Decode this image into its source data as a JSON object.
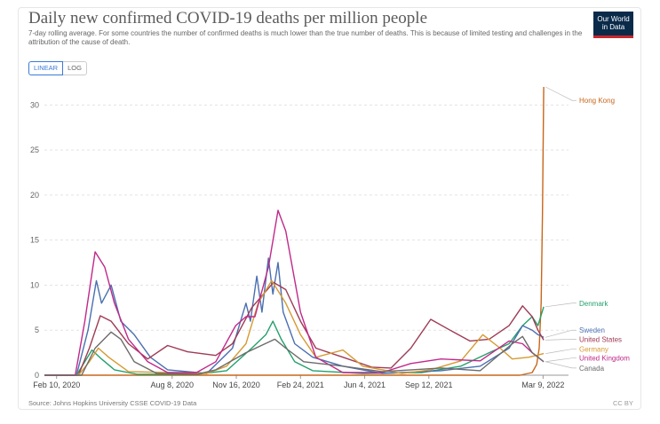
{
  "header": {
    "title": "Daily new confirmed COVID-19 deaths per million people",
    "subtitle": "7-day rolling average. For some countries the number of confirmed deaths is much lower than the true number of deaths. This is because of limited testing and challenges in the attribution of the cause of death."
  },
  "logo": {
    "line1": "Our World",
    "line2": "in Data"
  },
  "toggle": {
    "linear": "LINEAR",
    "log": "LOG"
  },
  "footer": {
    "source": "Source: Johns Hopkins University CSSE COVID-19 Data",
    "license": "CC BY"
  },
  "colors": {
    "Hong Kong": "#c8661a",
    "Denmark": "#23a06b",
    "Sweden": "#4a6fb0",
    "United States": "#9e3b54",
    "Germany": "#d69a33",
    "United Kingdom": "#c0298a",
    "Canada": "#6b6b6b"
  },
  "chart_data": {
    "type": "line",
    "title": "Daily new confirmed COVID-19 deaths per million people",
    "ylim": [
      0,
      32
    ],
    "yticks": [
      0,
      5,
      10,
      15,
      20,
      25,
      30
    ],
    "xlim": [
      "2020-01-22",
      "2022-04-01"
    ],
    "xticks": [
      {
        "label": "Feb 10, 2020",
        "date": "2020-02-10"
      },
      {
        "label": "Aug 8, 2020",
        "date": "2020-08-08"
      },
      {
        "label": "Nov 16, 2020",
        "date": "2020-11-16"
      },
      {
        "label": "Feb 24, 2021",
        "date": "2021-02-24"
      },
      {
        "label": "Jun 4, 2021",
        "date": "2021-06-04"
      },
      {
        "label": "Sep 12, 2021",
        "date": "2021-09-12"
      },
      {
        "label": "Mar 9, 2022",
        "date": "2022-03-09"
      }
    ],
    "grid": true,
    "legend": "right",
    "series": [
      {
        "name": "Hong Kong",
        "points": [
          [
            "2020-01-22",
            0
          ],
          [
            "2022-02-01",
            0
          ],
          [
            "2022-02-20",
            0.3
          ],
          [
            "2022-02-27",
            1.2
          ],
          [
            "2022-03-03",
            3
          ],
          [
            "2022-03-06",
            8
          ],
          [
            "2022-03-08",
            18
          ],
          [
            "2022-03-10",
            32
          ]
        ]
      },
      {
        "name": "Denmark",
        "points": [
          [
            "2020-01-22",
            0
          ],
          [
            "2020-03-12",
            0
          ],
          [
            "2020-03-25",
            1.5
          ],
          [
            "2020-04-05",
            2.8
          ],
          [
            "2020-04-20",
            1.8
          ],
          [
            "2020-05-10",
            0.6
          ],
          [
            "2020-06-15",
            0.1
          ],
          [
            "2020-09-15",
            0.1
          ],
          [
            "2020-11-01",
            0.5
          ],
          [
            "2020-12-10",
            3
          ],
          [
            "2021-01-01",
            4.5
          ],
          [
            "2021-01-12",
            6
          ],
          [
            "2021-01-25",
            4
          ],
          [
            "2021-02-15",
            1.5
          ],
          [
            "2021-03-15",
            0.5
          ],
          [
            "2021-06-01",
            0.2
          ],
          [
            "2021-09-01",
            0.3
          ],
          [
            "2021-11-01",
            1
          ],
          [
            "2021-12-15",
            2.5
          ],
          [
            "2022-01-15",
            3.5
          ],
          [
            "2022-02-05",
            5.5
          ],
          [
            "2022-02-20",
            6.5
          ],
          [
            "2022-03-01",
            5.5
          ],
          [
            "2022-03-10",
            7.6
          ]
        ]
      },
      {
        "name": "Sweden",
        "points": [
          [
            "2020-01-22",
            0
          ],
          [
            "2020-03-12",
            0
          ],
          [
            "2020-03-30",
            5
          ],
          [
            "2020-04-12",
            10.5
          ],
          [
            "2020-04-20",
            8
          ],
          [
            "2020-05-05",
            10
          ],
          [
            "2020-05-20",
            6
          ],
          [
            "2020-06-10",
            4.5
          ],
          [
            "2020-07-05",
            2
          ],
          [
            "2020-08-01",
            0.6
          ],
          [
            "2020-10-01",
            0.2
          ],
          [
            "2020-11-10",
            3
          ],
          [
            "2020-12-01",
            8
          ],
          [
            "2020-12-08",
            6
          ],
          [
            "2020-12-18",
            11
          ],
          [
            "2020-12-26",
            7
          ],
          [
            "2021-01-05",
            13
          ],
          [
            "2021-01-12",
            9
          ],
          [
            "2021-01-20",
            12.5
          ],
          [
            "2021-01-28",
            7
          ],
          [
            "2021-02-15",
            3.5
          ],
          [
            "2021-03-15",
            2
          ],
          [
            "2021-05-01",
            1
          ],
          [
            "2021-07-01",
            0.2
          ],
          [
            "2021-10-01",
            0.5
          ],
          [
            "2021-12-01",
            1
          ],
          [
            "2022-01-15",
            3
          ],
          [
            "2022-02-05",
            5.5
          ],
          [
            "2022-02-20",
            5
          ],
          [
            "2022-03-01",
            4.5
          ],
          [
            "2022-03-10",
            4.2
          ]
        ]
      },
      {
        "name": "United States",
        "points": [
          [
            "2020-01-22",
            0
          ],
          [
            "2020-03-15",
            0
          ],
          [
            "2020-04-01",
            3
          ],
          [
            "2020-04-18",
            6.6
          ],
          [
            "2020-05-05",
            6
          ],
          [
            "2020-06-01",
            3.5
          ],
          [
            "2020-07-01",
            1.8
          ],
          [
            "2020-08-01",
            3.3
          ],
          [
            "2020-09-01",
            2.6
          ],
          [
            "2020-10-15",
            2.2
          ],
          [
            "2020-11-10",
            3.5
          ],
          [
            "2020-12-10",
            7.5
          ],
          [
            "2021-01-13",
            10.3
          ],
          [
            "2021-02-01",
            9.5
          ],
          [
            "2021-02-24",
            6
          ],
          [
            "2021-03-20",
            3
          ],
          [
            "2021-05-01",
            2
          ],
          [
            "2021-06-15",
            0.9
          ],
          [
            "2021-07-15",
            0.8
          ],
          [
            "2021-08-15",
            3
          ],
          [
            "2021-09-15",
            6.2
          ],
          [
            "2021-10-15",
            5
          ],
          [
            "2021-11-15",
            3.8
          ],
          [
            "2021-12-15",
            4
          ],
          [
            "2022-01-15",
            5.5
          ],
          [
            "2022-02-05",
            7.7
          ],
          [
            "2022-02-20",
            6.5
          ],
          [
            "2022-03-01",
            5
          ],
          [
            "2022-03-10",
            3.9
          ]
        ]
      },
      {
        "name": "Germany",
        "points": [
          [
            "2020-01-22",
            0
          ],
          [
            "2020-03-15",
            0
          ],
          [
            "2020-04-01",
            1.5
          ],
          [
            "2020-04-15",
            3
          ],
          [
            "2020-05-01",
            2
          ],
          [
            "2020-06-01",
            0.4
          ],
          [
            "2020-10-01",
            0.2
          ],
          [
            "2020-11-01",
            1
          ],
          [
            "2020-12-01",
            3.5
          ],
          [
            "2020-12-20",
            8
          ],
          [
            "2021-01-10",
            10.5
          ],
          [
            "2021-02-01",
            8
          ],
          [
            "2021-02-24",
            4.5
          ],
          [
            "2021-03-20",
            2
          ],
          [
            "2021-05-01",
            2.8
          ],
          [
            "2021-06-01",
            1
          ],
          [
            "2021-08-01",
            0.2
          ],
          [
            "2021-09-15",
            0.6
          ],
          [
            "2021-11-01",
            1.6
          ],
          [
            "2021-12-05",
            4.5
          ],
          [
            "2022-01-01",
            3
          ],
          [
            "2022-01-20",
            1.8
          ],
          [
            "2022-02-15",
            2
          ],
          [
            "2022-03-10",
            2.4
          ]
        ]
      },
      {
        "name": "United Kingdom",
        "points": [
          [
            "2020-01-22",
            0
          ],
          [
            "2020-03-10",
            0
          ],
          [
            "2020-03-25",
            6
          ],
          [
            "2020-04-10",
            13.7
          ],
          [
            "2020-04-25",
            12
          ],
          [
            "2020-05-10",
            8
          ],
          [
            "2020-06-01",
            4
          ],
          [
            "2020-07-01",
            1.5
          ],
          [
            "2020-08-01",
            0.3
          ],
          [
            "2020-09-15",
            0.3
          ],
          [
            "2020-10-15",
            1.5
          ],
          [
            "2020-11-15",
            5.5
          ],
          [
            "2020-12-01",
            6.5
          ],
          [
            "2020-12-15",
            6.5
          ],
          [
            "2021-01-05",
            12
          ],
          [
            "2021-01-20",
            18.3
          ],
          [
            "2021-02-01",
            16
          ],
          [
            "2021-02-24",
            7
          ],
          [
            "2021-03-20",
            2
          ],
          [
            "2021-05-01",
            0.3
          ],
          [
            "2021-07-01",
            0.3
          ],
          [
            "2021-08-15",
            1.3
          ],
          [
            "2021-10-01",
            1.8
          ],
          [
            "2021-12-01",
            1.6
          ],
          [
            "2022-01-15",
            3.8
          ],
          [
            "2022-02-05",
            3.5
          ],
          [
            "2022-02-20",
            2.5
          ],
          [
            "2022-03-10",
            1.5
          ]
        ]
      },
      {
        "name": "Canada",
        "points": [
          [
            "2020-01-22",
            0
          ],
          [
            "2020-03-20",
            0
          ],
          [
            "2020-04-10",
            3
          ],
          [
            "2020-05-05",
            4.8
          ],
          [
            "2020-05-20",
            4
          ],
          [
            "2020-06-10",
            1.5
          ],
          [
            "2020-07-15",
            0.2
          ],
          [
            "2020-09-15",
            0.1
          ],
          [
            "2020-10-15",
            0.6
          ],
          [
            "2020-12-01",
            2.5
          ],
          [
            "2021-01-15",
            4
          ],
          [
            "2021-02-01",
            3
          ],
          [
            "2021-03-01",
            1.5
          ],
          [
            "2021-05-01",
            1
          ],
          [
            "2021-07-01",
            0.4
          ],
          [
            "2021-10-01",
            0.8
          ],
          [
            "2021-12-01",
            0.5
          ],
          [
            "2022-01-20",
            3.5
          ],
          [
            "2022-02-05",
            4.3
          ],
          [
            "2022-02-20",
            2.5
          ],
          [
            "2022-03-10",
            1.5
          ]
        ]
      }
    ],
    "labels": [
      {
        "name": "Hong Kong",
        "y": 32
      },
      {
        "name": "Denmark",
        "y": 8.0
      },
      {
        "name": "Sweden",
        "y": 5.0
      },
      {
        "name": "United States",
        "y": 4.0
      },
      {
        "name": "Germany",
        "y": 2.9
      },
      {
        "name": "United Kingdom",
        "y": 1.9
      },
      {
        "name": "Canada",
        "y": 0.8
      }
    ]
  }
}
